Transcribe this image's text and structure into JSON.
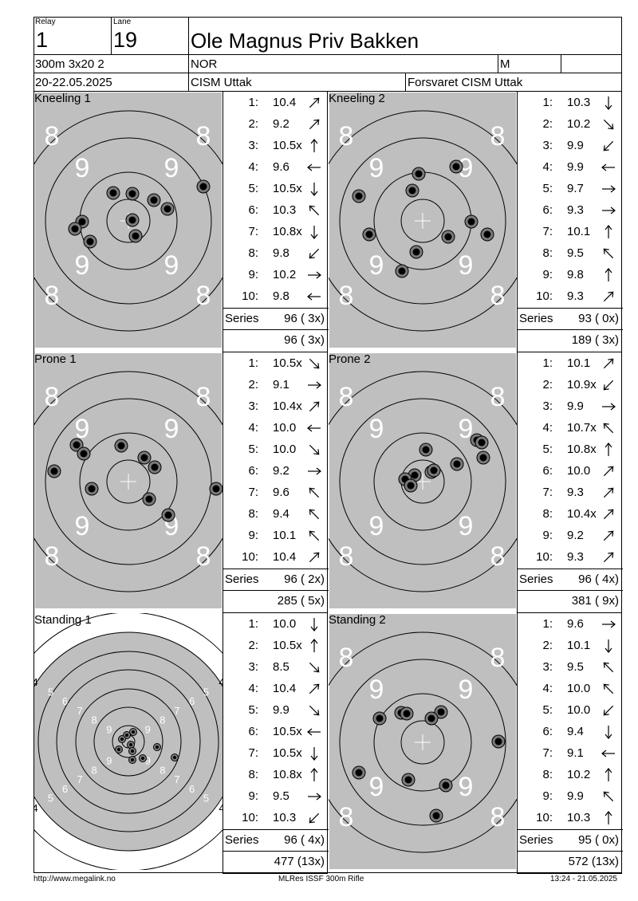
{
  "header": {
    "relay_label": "Relay",
    "relay_value": "1",
    "lane_label": "Lane",
    "lane_value": "19",
    "shooter_name": "Ole Magnus Priv Bakken",
    "event": "300m 3x20 2",
    "nation": "NOR",
    "gender": "M",
    "date": "20-22.05.2025",
    "competition": "CISM Uttak",
    "organizer": "Forsvaret CISM Uttak"
  },
  "series": [
    {
      "title": "Kneeling 1",
      "target_type": "big",
      "shots": [
        {
          "n": "1:",
          "v": "10.4",
          "dir": "ur"
        },
        {
          "n": "2:",
          "v": "9.2",
          "dir": "ur"
        },
        {
          "n": "3:",
          "v": "10.5x",
          "dir": "u"
        },
        {
          "n": "4:",
          "v": "9.6",
          "dir": "l"
        },
        {
          "n": "5:",
          "v": "10.5x",
          "dir": "d"
        },
        {
          "n": "6:",
          "v": "10.3",
          "dir": "ul"
        },
        {
          "n": "7:",
          "v": "10.8x",
          "dir": "d"
        },
        {
          "n": "8:",
          "v": "9.8",
          "dir": "dl"
        },
        {
          "n": "9:",
          "v": "10.2",
          "dir": "r"
        },
        {
          "n": "10:",
          "v": "9.8",
          "dir": "l"
        }
      ],
      "series_label": "Series",
      "series_total": "96 ( 3x)",
      "cumulative": "96 ( 3x)",
      "hits": [
        {
          "x": -19,
          "y": -35
        },
        {
          "x": 5,
          "y": -34
        },
        {
          "x": 32,
          "y": -26
        },
        {
          "x": 49,
          "y": -15
        },
        {
          "x": 94,
          "y": -43
        },
        {
          "x": 5,
          "y": -1
        },
        {
          "x": -58,
          "y": 1
        },
        {
          "x": -67,
          "y": 10
        },
        {
          "x": 9,
          "y": 19
        },
        {
          "x": -48,
          "y": 26
        }
      ]
    },
    {
      "title": "Kneeling 2",
      "target_type": "big",
      "shots": [
        {
          "n": "1:",
          "v": "10.3",
          "dir": "d"
        },
        {
          "n": "2:",
          "v": "10.2",
          "dir": "dr"
        },
        {
          "n": "3:",
          "v": "9.9",
          "dir": "dl"
        },
        {
          "n": "4:",
          "v": "9.9",
          "dir": "l"
        },
        {
          "n": "5:",
          "v": "9.7",
          "dir": "r"
        },
        {
          "n": "6:",
          "v": "9.3",
          "dir": "r"
        },
        {
          "n": "7:",
          "v": "10.1",
          "dir": "u"
        },
        {
          "n": "8:",
          "v": "9.5",
          "dir": "ul"
        },
        {
          "n": "9:",
          "v": "9.8",
          "dir": "u"
        },
        {
          "n": "10:",
          "v": "9.3",
          "dir": "ur"
        }
      ],
      "series_label": "Series",
      "series_total": "93 ( 0x)",
      "cumulative": "189 ( 3x)",
      "hits": [
        {
          "x": -5,
          "y": -59
        },
        {
          "x": 42,
          "y": -68
        },
        {
          "x": -13,
          "y": -38
        },
        {
          "x": -80,
          "y": -31
        },
        {
          "x": 61,
          "y": 1
        },
        {
          "x": 81,
          "y": 17
        },
        {
          "x": -67,
          "y": 17
        },
        {
          "x": 32,
          "y": 20
        },
        {
          "x": -8,
          "y": 39
        },
        {
          "x": -26,
          "y": 63
        }
      ]
    },
    {
      "title": "Prone 1",
      "target_type": "big",
      "shots": [
        {
          "n": "1:",
          "v": "10.5x",
          "dir": "dr"
        },
        {
          "n": "2:",
          "v": "9.1",
          "dir": "r"
        },
        {
          "n": "3:",
          "v": "10.4x",
          "dir": "ur"
        },
        {
          "n": "4:",
          "v": "10.0",
          "dir": "l"
        },
        {
          "n": "5:",
          "v": "10.0",
          "dir": "dr"
        },
        {
          "n": "6:",
          "v": "9.2",
          "dir": "r"
        },
        {
          "n": "7:",
          "v": "9.6",
          "dir": "ul"
        },
        {
          "n": "8:",
          "v": "9.4",
          "dir": "ul"
        },
        {
          "n": "9:",
          "v": "10.1",
          "dir": "ul"
        },
        {
          "n": "10:",
          "v": "10.4",
          "dir": "ur"
        }
      ],
      "series_label": "Series",
      "series_total": "96 ( 2x)",
      "cumulative": "285 ( 5x)",
      "hits": [
        {
          "x": -9,
          "y": -45
        },
        {
          "x": -65,
          "y": -46
        },
        {
          "x": -56,
          "y": -35
        },
        {
          "x": 20,
          "y": -30
        },
        {
          "x": 33,
          "y": -18
        },
        {
          "x": -93,
          "y": -13
        },
        {
          "x": -46,
          "y": 9
        },
        {
          "x": 110,
          "y": 9
        },
        {
          "x": 26,
          "y": 22
        },
        {
          "x": 50,
          "y": 42
        }
      ]
    },
    {
      "title": "Prone 2",
      "target_type": "big",
      "shots": [
        {
          "n": "1:",
          "v": "10.1",
          "dir": "ur"
        },
        {
          "n": "2:",
          "v": "10.9x",
          "dir": "dl"
        },
        {
          "n": "3:",
          "v": "9.9",
          "dir": "r"
        },
        {
          "n": "4:",
          "v": "10.7x",
          "dir": "ul"
        },
        {
          "n": "5:",
          "v": "10.8x",
          "dir": "u"
        },
        {
          "n": "6:",
          "v": "10.0",
          "dir": "ur"
        },
        {
          "n": "7:",
          "v": "9.3",
          "dir": "ur"
        },
        {
          "n": "8:",
          "v": "10.4x",
          "dir": "ur"
        },
        {
          "n": "9:",
          "v": "9.2",
          "dir": "ur"
        },
        {
          "n": "10:",
          "v": "9.3",
          "dir": "ur"
        }
      ],
      "series_label": "Series",
      "series_total": "96 ( 4x)",
      "cumulative": "381 ( 9x)",
      "hits": [
        {
          "x": 4,
          "y": -40
        },
        {
          "x": 68,
          "y": -52
        },
        {
          "x": 74,
          "y": -49
        },
        {
          "x": 76,
          "y": -30
        },
        {
          "x": 11,
          "y": -12
        },
        {
          "x": -10,
          "y": -8
        },
        {
          "x": 14,
          "y": -14
        },
        {
          "x": 43,
          "y": -22
        },
        {
          "x": -22,
          "y": -3
        },
        {
          "x": -15,
          "y": 5
        }
      ]
    },
    {
      "title": "Standing 1",
      "target_type": "small",
      "shots": [
        {
          "n": "1:",
          "v": "10.0",
          "dir": "d"
        },
        {
          "n": "2:",
          "v": "10.5x",
          "dir": "u"
        },
        {
          "n": "3:",
          "v": "8.5",
          "dir": "dr"
        },
        {
          "n": "4:",
          "v": "10.4",
          "dir": "ur"
        },
        {
          "n": "5:",
          "v": "9.9",
          "dir": "dr"
        },
        {
          "n": "6:",
          "v": "10.5x",
          "dir": "l"
        },
        {
          "n": "7:",
          "v": "10.5x",
          "dir": "d"
        },
        {
          "n": "8:",
          "v": "10.8x",
          "dir": "u"
        },
        {
          "n": "9:",
          "v": "9.5",
          "dir": "r"
        },
        {
          "n": "10:",
          "v": "10.3",
          "dir": "dl"
        }
      ],
      "series_label": "Series",
      "series_total": "96 ( 4x)",
      "cumulative": "477 (13x)",
      "hits": [
        {
          "x": 6,
          "y": -12
        },
        {
          "x": -2,
          "y": -8
        },
        {
          "x": -8,
          "y": -3
        },
        {
          "x": 3,
          "y": 4
        },
        {
          "x": -12,
          "y": 10
        },
        {
          "x": 5,
          "y": 12
        },
        {
          "x": 36,
          "y": 7
        },
        {
          "x": 58,
          "y": 20
        },
        {
          "x": 18,
          "y": 21
        },
        {
          "x": 5,
          "y": 23
        }
      ]
    },
    {
      "title": "Standing 2",
      "target_type": "big",
      "shots": [
        {
          "n": "1:",
          "v": "9.6",
          "dir": "r"
        },
        {
          "n": "2:",
          "v": "10.1",
          "dir": "d"
        },
        {
          "n": "3:",
          "v": "9.5",
          "dir": "ul"
        },
        {
          "n": "4:",
          "v": "10.0",
          "dir": "ul"
        },
        {
          "n": "5:",
          "v": "10.0",
          "dir": "dl"
        },
        {
          "n": "6:",
          "v": "9.4",
          "dir": "d"
        },
        {
          "n": "7:",
          "v": "9.1",
          "dir": "l"
        },
        {
          "n": "8:",
          "v": "10.2",
          "dir": "u"
        },
        {
          "n": "9:",
          "v": "9.9",
          "dir": "ul"
        },
        {
          "n": "10:",
          "v": "10.3",
          "dir": "u"
        }
      ],
      "series_label": "Series",
      "series_total": "95 ( 0x)",
      "cumulative": "572 (13x)",
      "hits": [
        {
          "x": -27,
          "y": -37
        },
        {
          "x": -20,
          "y": -36
        },
        {
          "x": 23,
          "y": -38
        },
        {
          "x": 11,
          "y": -30
        },
        {
          "x": -54,
          "y": -30
        },
        {
          "x": 95,
          "y": -1
        },
        {
          "x": -80,
          "y": 38
        },
        {
          "x": -18,
          "y": 47
        },
        {
          "x": 29,
          "y": 54
        },
        {
          "x": 17,
          "y": 92
        }
      ]
    }
  ],
  "footer": {
    "url": "http://www.megalink.no",
    "software": "MLRes ISSF 300m Rifle",
    "timestamp": "13:24 - 21.05.2025"
  }
}
